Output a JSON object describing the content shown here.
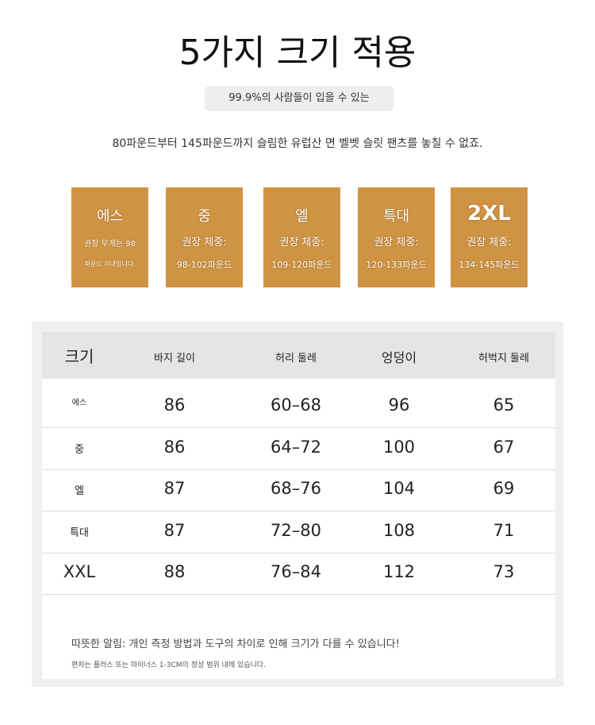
{
  "title": "5가지 크기 적용",
  "pill": "99.9%의 사람들이 입을 수 있는",
  "subtitle": "80파운드부터 145파운드까지 슬림한 유럽산 면 벨벳 슬릿 팬츠를 놓칠 수 없죠.",
  "brand_color": "#cf9443",
  "cards": [
    {
      "name": "에스",
      "line1": "권장 무게는 98",
      "line2": "파운드 이내입니다."
    },
    {
      "name": "중",
      "line1": "권장 체중:",
      "line2": "98-102파운드"
    },
    {
      "name": "엘",
      "line1": "권장 체중:",
      "line2": "109-120파운드"
    },
    {
      "name": "특대",
      "line1": "권장 체중:",
      "line2": "120-133파운드"
    },
    {
      "name": "2XL",
      "line1": "권장 체중:",
      "line2": "134-145파운드"
    }
  ],
  "table": {
    "headers": [
      "크기",
      "바지 길이",
      "허리 둘레",
      "엉덩이",
      "허벅지 둘레"
    ],
    "rows": [
      [
        "에스",
        "86",
        "60–68",
        "96",
        "65"
      ],
      [
        "중",
        "86",
        "64–72",
        "100",
        "67"
      ],
      [
        "엘",
        "87",
        "68–76",
        "104",
        "69"
      ],
      [
        "특대",
        "87",
        "72–80",
        "108",
        "71"
      ],
      [
        "XXL",
        "88",
        "76–84",
        "112",
        "73"
      ]
    ]
  },
  "note1": "따뜻한 알림: 개인 측정 방법과 도구의 차이로 인해 크기가 다를 수 있습니다!",
  "note2": "편차는 플러스 또는 마이너스 1-3CM의 정상 범위 내에 있습니다."
}
